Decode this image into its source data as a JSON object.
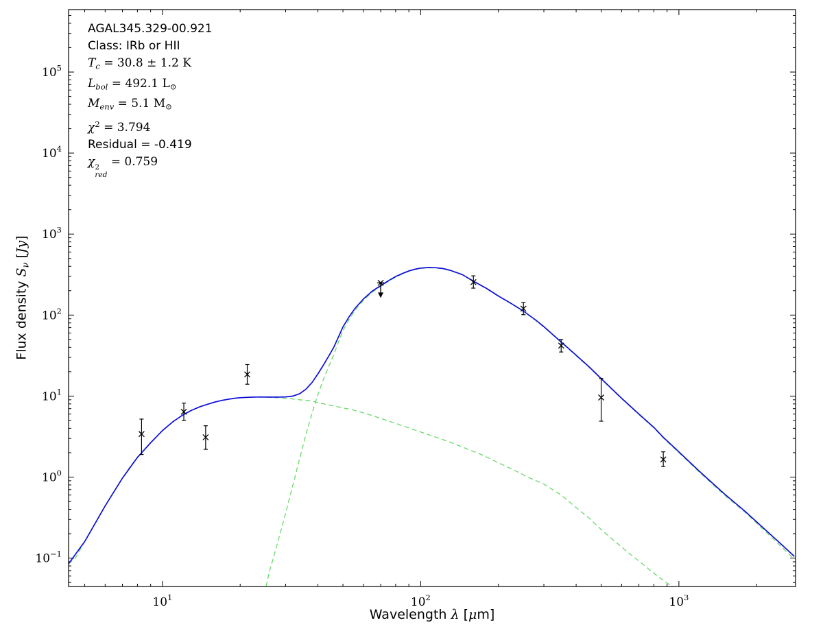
{
  "figure": {
    "background": "#ffffff",
    "frame_color": "#000000",
    "annotation_lines": [
      {
        "name": "source-name",
        "font": "sans",
        "parts": [
          {
            "t": "AGAL345.329-00.921"
          }
        ]
      },
      {
        "name": "source-class",
        "font": "sans",
        "parts": [
          {
            "t": "Class: IRb or HII"
          }
        ]
      },
      {
        "name": "dust-temperature",
        "font": "math",
        "parts": [
          {
            "i": "T"
          },
          {
            "sub": "c"
          },
          {
            "t": " = 30.8 ± 1.2 K"
          }
        ]
      },
      {
        "name": "bolometric-luminosity",
        "font": "math",
        "parts": [
          {
            "i": "L"
          },
          {
            "sub": "bol"
          },
          {
            "t": " = 492.1 L"
          },
          {
            "sub": "⊙"
          }
        ]
      },
      {
        "name": "envelope-mass",
        "font": "math",
        "parts": [
          {
            "i": "M"
          },
          {
            "sub": "env"
          },
          {
            "t": " = 5.1 M"
          },
          {
            "sub": "⊙"
          }
        ]
      },
      {
        "name": "chi-squared",
        "font": "math",
        "parts": [
          {
            "i": "χ"
          },
          {
            "sup": "2"
          },
          {
            "t": " = 3.794"
          }
        ]
      },
      {
        "name": "residual",
        "font": "sans",
        "parts": [
          {
            "t": "Residual = -0.419"
          }
        ]
      },
      {
        "name": "chi-squared-reduced",
        "font": "math",
        "parts": [
          {
            "i": "χ"
          },
          {
            "stack": {
              "sup": "2",
              "sub": "red"
            }
          },
          {
            "t": " = 0.759"
          }
        ]
      }
    ]
  },
  "chart_data": {
    "type": "line",
    "title": "",
    "xlabel": "Wavelength λ [μm]",
    "ylabel": "Flux density S_ν [Jy]",
    "xlabel_parts": [
      {
        "t": "Wavelength "
      },
      {
        "i": "λ"
      },
      {
        "t": " ["
      },
      {
        "i": "μ"
      },
      {
        "t": "m]"
      }
    ],
    "ylabel_parts": [
      {
        "t": "Flux density "
      },
      {
        "i": "S"
      },
      {
        "sub": "ν"
      },
      {
        "t": " ["
      },
      {
        "i": "Jy"
      },
      {
        "t": "]"
      }
    ],
    "xscale": "log",
    "yscale": "log",
    "xlim": [
      4.33,
      2830
    ],
    "ylim": [
      0.0446,
      590000
    ],
    "x_major_ticks": [
      10,
      100,
      1000
    ],
    "y_major_ticks": [
      0.1,
      1,
      10,
      100,
      1000,
      10000,
      100000
    ],
    "grid": false,
    "legend": "none",
    "series": [
      {
        "name": "warm-component",
        "color": "#68d868",
        "style": "dashed",
        "points": [
          [
            4.33,
            0.085
          ],
          [
            4.6,
            0.1
          ],
          [
            5,
            0.16
          ],
          [
            5.5,
            0.27
          ],
          [
            6,
            0.44
          ],
          [
            6.5,
            0.67
          ],
          [
            7,
            0.97
          ],
          [
            7.5,
            1.35
          ],
          [
            8,
            1.75
          ],
          [
            9,
            2.65
          ],
          [
            10,
            3.75
          ],
          [
            11,
            4.85
          ],
          [
            12,
            5.85
          ],
          [
            13,
            6.7
          ],
          [
            14,
            7.4
          ],
          [
            15,
            7.95
          ],
          [
            16,
            8.45
          ],
          [
            17,
            8.85
          ],
          [
            18,
            9.15
          ],
          [
            19,
            9.4
          ],
          [
            20,
            9.55
          ],
          [
            22,
            9.7
          ],
          [
            24,
            9.72
          ],
          [
            26,
            9.65
          ],
          [
            28,
            9.55
          ],
          [
            30,
            9.4
          ],
          [
            32,
            9.2
          ],
          [
            34,
            9.0
          ],
          [
            36,
            8.85
          ],
          [
            38,
            8.65
          ],
          [
            40,
            8.3
          ],
          [
            43,
            7.9
          ],
          [
            46,
            7.55
          ],
          [
            50,
            7.15
          ],
          [
            55,
            6.7
          ],
          [
            60,
            6.2
          ],
          [
            65,
            5.75
          ],
          [
            70,
            5.3
          ],
          [
            80,
            4.6
          ],
          [
            90,
            4.05
          ],
          [
            100,
            3.6
          ],
          [
            115,
            3.1
          ],
          [
            130,
            2.7
          ],
          [
            150,
            2.25
          ],
          [
            175,
            1.85
          ],
          [
            200,
            1.5
          ],
          [
            230,
            1.22
          ],
          [
            260,
            1.0
          ],
          [
            300,
            0.82
          ],
          [
            350,
            0.6
          ],
          [
            400,
            0.42
          ],
          [
            450,
            0.31
          ],
          [
            500,
            0.225
          ],
          [
            560,
            0.165
          ],
          [
            630,
            0.12
          ],
          [
            700,
            0.092
          ],
          [
            800,
            0.065
          ],
          [
            900,
            0.049
          ],
          [
            950,
            0.0446
          ]
        ]
      },
      {
        "name": "cold-envelope-component",
        "color": "#68d868",
        "style": "dashed",
        "points": [
          [
            25.2,
            0.0446
          ],
          [
            26,
            0.07
          ],
          [
            27,
            0.105
          ],
          [
            28,
            0.16
          ],
          [
            29,
            0.24
          ],
          [
            30,
            0.36
          ],
          [
            32,
            0.8
          ],
          [
            34,
            1.7
          ],
          [
            36,
            3.4
          ],
          [
            38,
            6.2
          ],
          [
            40,
            10.5
          ],
          [
            42,
            16
          ],
          [
            44,
            23
          ],
          [
            46,
            32
          ],
          [
            48,
            46
          ],
          [
            50,
            64
          ],
          [
            53,
            90
          ],
          [
            56,
            117
          ],
          [
            60,
            152
          ],
          [
            65,
            192
          ],
          [
            70,
            226
          ],
          [
            75,
            260
          ],
          [
            80,
            294
          ],
          [
            85,
            322
          ],
          [
            90,
            347
          ],
          [
            95,
            364
          ],
          [
            100,
            376
          ],
          [
            107,
            383
          ],
          [
            115,
            381
          ],
          [
            122,
            372
          ],
          [
            130,
            354
          ],
          [
            145,
            314
          ],
          [
            160,
            260
          ],
          [
            180,
            211
          ],
          [
            200,
            171
          ],
          [
            225,
            137
          ],
          [
            250,
            111
          ],
          [
            280,
            85
          ],
          [
            300,
            71
          ],
          [
            350,
            46
          ],
          [
            400,
            31.5
          ],
          [
            450,
            22.5
          ],
          [
            500,
            16.2
          ],
          [
            600,
            9.3
          ],
          [
            700,
            5.9
          ],
          [
            800,
            4.05
          ],
          [
            870,
            3.05
          ],
          [
            1000,
            2.0
          ],
          [
            1200,
            1.15
          ],
          [
            1500,
            0.6
          ],
          [
            1800,
            0.37
          ],
          [
            2000,
            0.27
          ],
          [
            2400,
            0.155
          ],
          [
            2800,
            0.097
          ]
        ]
      },
      {
        "name": "total-model-fit",
        "color": "#0c0cda",
        "style": "solid",
        "points": [
          [
            4.33,
            0.085
          ],
          [
            5,
            0.16
          ],
          [
            6,
            0.44
          ],
          [
            7,
            0.97
          ],
          [
            8,
            1.75
          ],
          [
            9,
            2.65
          ],
          [
            10,
            3.75
          ],
          [
            11,
            4.85
          ],
          [
            12,
            5.85
          ],
          [
            13,
            6.7
          ],
          [
            14,
            7.4
          ],
          [
            15,
            7.95
          ],
          [
            16,
            8.45
          ],
          [
            17,
            8.85
          ],
          [
            18,
            9.15
          ],
          [
            19,
            9.4
          ],
          [
            20,
            9.55
          ],
          [
            22,
            9.7
          ],
          [
            24,
            9.75
          ],
          [
            26,
            9.72
          ],
          [
            28,
            9.71
          ],
          [
            30,
            9.76
          ],
          [
            32,
            10.0
          ],
          [
            34,
            10.7
          ],
          [
            36,
            12.2
          ],
          [
            38,
            14.8
          ],
          [
            40,
            18.8
          ],
          [
            42,
            24.1
          ],
          [
            44,
            30.9
          ],
          [
            46,
            39.6
          ],
          [
            48,
            53.4
          ],
          [
            50,
            71.2
          ],
          [
            53,
            96.9
          ],
          [
            56,
            123.7
          ],
          [
            60,
            158
          ],
          [
            65,
            198
          ],
          [
            70,
            231
          ],
          [
            75,
            265
          ],
          [
            80,
            299
          ],
          [
            85,
            326
          ],
          [
            90,
            351
          ],
          [
            95,
            368
          ],
          [
            100,
            380
          ],
          [
            107,
            386
          ],
          [
            115,
            384
          ],
          [
            122,
            375
          ],
          [
            130,
            357
          ],
          [
            145,
            316
          ],
          [
            160,
            262
          ],
          [
            180,
            213
          ],
          [
            200,
            172
          ],
          [
            225,
            138
          ],
          [
            250,
            112
          ],
          [
            280,
            86
          ],
          [
            300,
            72
          ],
          [
            350,
            46.6
          ],
          [
            400,
            31.9
          ],
          [
            450,
            22.8
          ],
          [
            500,
            16.4
          ],
          [
            600,
            9.4
          ],
          [
            700,
            6.0
          ],
          [
            800,
            4.1
          ],
          [
            870,
            3.1
          ],
          [
            1000,
            2.05
          ],
          [
            1200,
            1.18
          ],
          [
            1500,
            0.62
          ],
          [
            1800,
            0.38
          ],
          [
            2000,
            0.28
          ],
          [
            2400,
            0.165
          ],
          [
            2800,
            0.105
          ]
        ]
      }
    ],
    "data_points": {
      "marker": "x",
      "color": "#000000",
      "points": [
        {
          "wavelength_um": 8.3,
          "flux_jy": 3.4,
          "flux_lo": 1.9,
          "flux_hi": 5.2
        },
        {
          "wavelength_um": 12.1,
          "flux_jy": 6.4,
          "flux_lo": 5.0,
          "flux_hi": 8.2
        },
        {
          "wavelength_um": 14.7,
          "flux_jy": 3.1,
          "flux_lo": 2.2,
          "flux_hi": 4.3
        },
        {
          "wavelength_um": 21.3,
          "flux_jy": 18.5,
          "flux_lo": 14.0,
          "flux_hi": 24.5
        },
        {
          "wavelength_um": 70,
          "flux_jy": 250,
          "upper_limit": true
        },
        {
          "wavelength_um": 160,
          "flux_jy": 255,
          "flux_lo": 215,
          "flux_hi": 305
        },
        {
          "wavelength_um": 250,
          "flux_jy": 120,
          "flux_lo": 101,
          "flux_hi": 143
        },
        {
          "wavelength_um": 350,
          "flux_jy": 42,
          "flux_lo": 35,
          "flux_hi": 50
        },
        {
          "wavelength_um": 500,
          "flux_jy": 9.6,
          "flux_lo": 4.9,
          "flux_hi": 16.5
        },
        {
          "wavelength_um": 870,
          "flux_jy": 1.65,
          "flux_lo": 1.35,
          "flux_hi": 2.05
        }
      ]
    }
  }
}
